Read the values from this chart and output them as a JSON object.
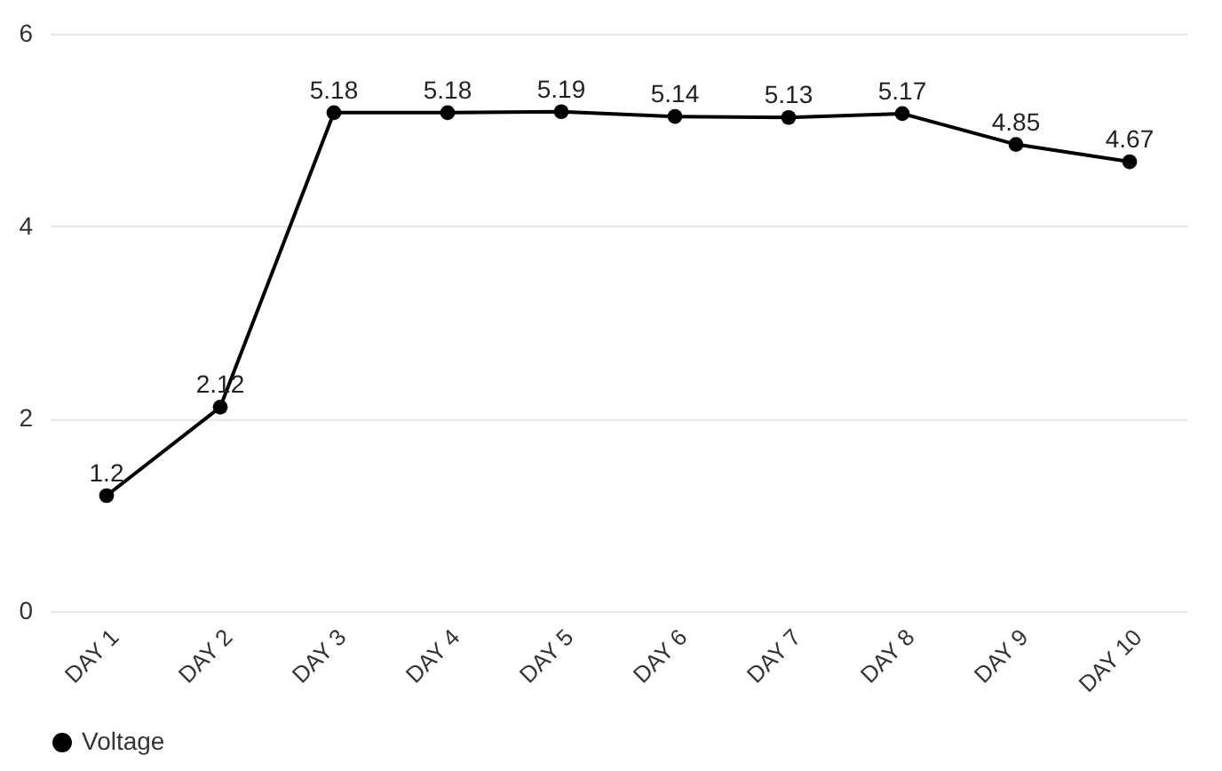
{
  "chart_data": {
    "type": "line",
    "categories": [
      "DAY 1",
      "DAY 2",
      "DAY 3",
      "DAY 4",
      "DAY 5",
      "DAY 6",
      "DAY 7",
      "DAY 8",
      "DAY 9",
      "DAY 10"
    ],
    "series": [
      {
        "name": "Voltage",
        "color": "#000000",
        "values": [
          1.2,
          2.12,
          5.18,
          5.18,
          5.19,
          5.14,
          5.13,
          5.17,
          4.85,
          4.67
        ]
      }
    ],
    "ylim": [
      0,
      6
    ],
    "yticks": [
      0,
      2,
      4,
      6
    ],
    "grid": "y",
    "legend": "bottom",
    "marker": "circle",
    "line_style": "solid",
    "data_labels": true
  }
}
